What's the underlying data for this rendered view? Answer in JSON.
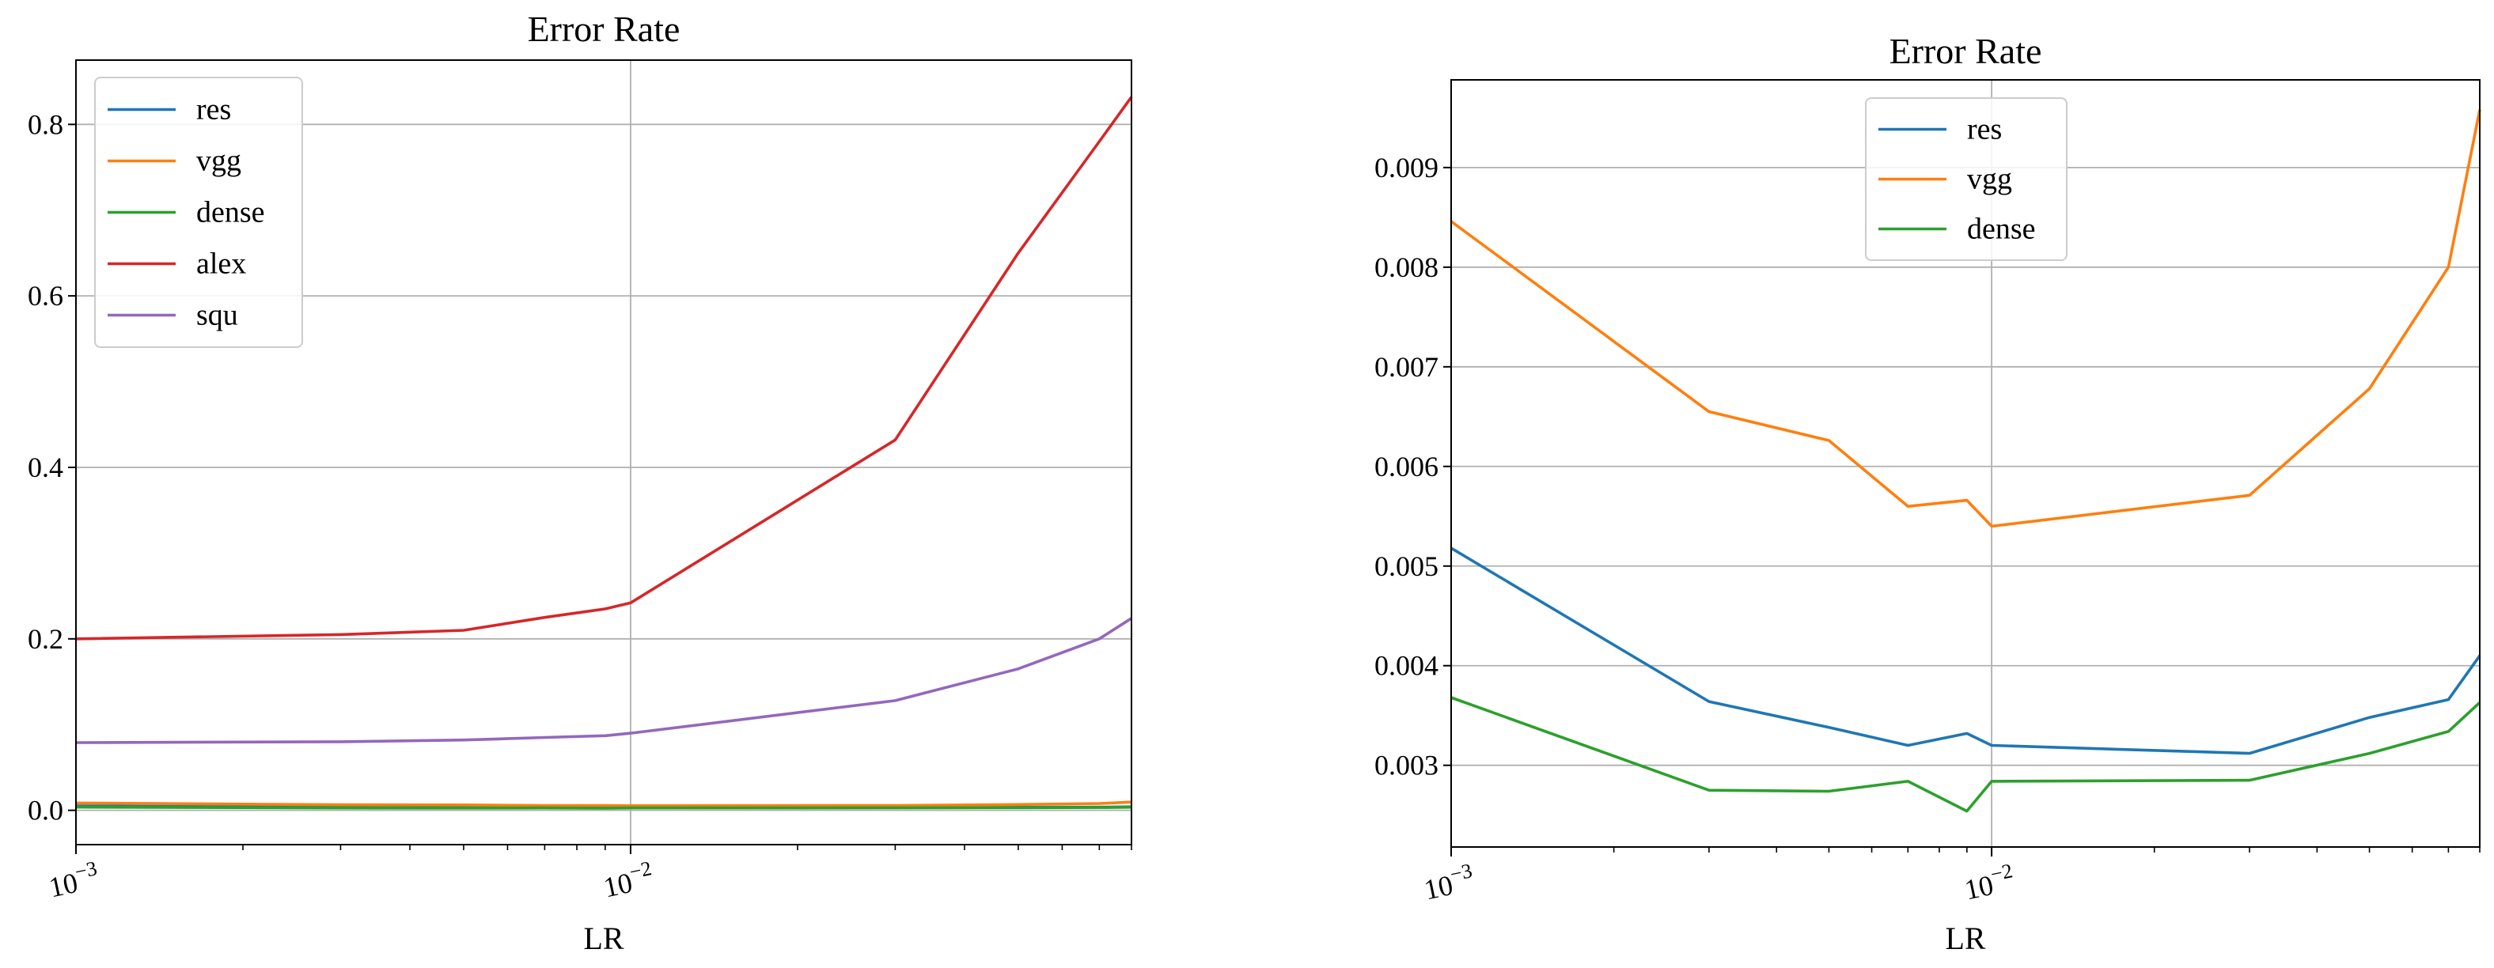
{
  "chart_data": [
    {
      "type": "line",
      "title": "Error Rate",
      "xlabel": "LR",
      "ylabel": "",
      "xscale": "log",
      "xlim": [
        0.001,
        0.08
      ],
      "ylim": [
        -0.04,
        0.875
      ],
      "xticks": [
        {
          "value": 0.001,
          "base": "10",
          "exp": "−3"
        },
        {
          "value": 0.01,
          "base": "10",
          "exp": "−2"
        }
      ],
      "yticks": [
        {
          "value": 0.0,
          "label": "0.0"
        },
        {
          "value": 0.2,
          "label": "0.2"
        },
        {
          "value": 0.4,
          "label": "0.4"
        },
        {
          "value": 0.6,
          "label": "0.6"
        },
        {
          "value": 0.8,
          "label": "0.8"
        }
      ],
      "grid": true,
      "legend_position": "upper-left",
      "series": [
        {
          "name": "res",
          "color": "#1f77b4",
          "x": [
            0.001,
            0.003,
            0.005,
            0.007,
            0.009,
            0.01,
            0.03,
            0.05,
            0.07,
            0.08
          ],
          "y": [
            0.0052,
            0.0036,
            0.0034,
            0.0032,
            0.0033,
            0.0032,
            0.0031,
            0.0035,
            0.0037,
            0.0041
          ]
        },
        {
          "name": "vgg",
          "color": "#ff7f0e",
          "x": [
            0.001,
            0.003,
            0.005,
            0.007,
            0.009,
            0.01,
            0.03,
            0.05,
            0.07,
            0.08
          ],
          "y": [
            0.0085,
            0.0065,
            0.0063,
            0.0056,
            0.0057,
            0.0054,
            0.0057,
            0.0068,
            0.008,
            0.0096
          ]
        },
        {
          "name": "dense",
          "color": "#2ca02c",
          "x": [
            0.001,
            0.003,
            0.005,
            0.007,
            0.009,
            0.01,
            0.03,
            0.05,
            0.07,
            0.08
          ],
          "y": [
            0.0037,
            0.0028,
            0.0027,
            0.0028,
            0.0025,
            0.0028,
            0.0029,
            0.0031,
            0.0033,
            0.0036
          ]
        },
        {
          "name": "alex",
          "color": "#d62728",
          "x": [
            0.001,
            0.003,
            0.005,
            0.007,
            0.009,
            0.01,
            0.03,
            0.05,
            0.07,
            0.08
          ],
          "y": [
            0.2,
            0.205,
            0.21,
            0.225,
            0.235,
            0.242,
            0.432,
            0.65,
            0.78,
            0.832
          ]
        },
        {
          "name": "squ",
          "color": "#9467bd",
          "x": [
            0.001,
            0.003,
            0.005,
            0.007,
            0.009,
            0.01,
            0.03,
            0.05,
            0.07,
            0.08
          ],
          "y": [
            0.079,
            0.08,
            0.082,
            0.085,
            0.087,
            0.09,
            0.128,
            0.165,
            0.2,
            0.224
          ]
        }
      ]
    },
    {
      "type": "line",
      "title": "Error Rate",
      "xlabel": "LR",
      "ylabel": "",
      "xscale": "log",
      "xlim": [
        0.001,
        0.08
      ],
      "ylim": [
        0.00218,
        0.00988
      ],
      "xticks": [
        {
          "value": 0.001,
          "base": "10",
          "exp": "−3"
        },
        {
          "value": 0.01,
          "base": "10",
          "exp": "−2"
        }
      ],
      "yticks": [
        {
          "value": 0.003,
          "label": "0.003"
        },
        {
          "value": 0.004,
          "label": "0.004"
        },
        {
          "value": 0.005,
          "label": "0.005"
        },
        {
          "value": 0.006,
          "label": "0.006"
        },
        {
          "value": 0.007,
          "label": "0.007"
        },
        {
          "value": 0.008,
          "label": "0.008"
        },
        {
          "value": 0.009,
          "label": "0.009"
        }
      ],
      "grid": true,
      "legend_position": "upper-center",
      "series": [
        {
          "name": "res",
          "color": "#1f77b4",
          "x": [
            0.001,
            0.003,
            0.005,
            0.007,
            0.009,
            0.01,
            0.03,
            0.05,
            0.07,
            0.08
          ],
          "y": [
            0.00518,
            0.00364,
            0.00338,
            0.0032,
            0.00332,
            0.0032,
            0.00312,
            0.00348,
            0.00366,
            0.0041
          ]
        },
        {
          "name": "vgg",
          "color": "#ff7f0e",
          "x": [
            0.001,
            0.003,
            0.005,
            0.007,
            0.009,
            0.01,
            0.03,
            0.05,
            0.07,
            0.08
          ],
          "y": [
            0.00846,
            0.00655,
            0.00626,
            0.0056,
            0.00566,
            0.0054,
            0.00571,
            0.00678,
            0.008,
            0.00958
          ]
        },
        {
          "name": "dense",
          "color": "#2ca02c",
          "x": [
            0.001,
            0.003,
            0.005,
            0.007,
            0.009,
            0.01,
            0.03,
            0.05,
            0.07,
            0.08
          ],
          "y": [
            0.00368,
            0.00275,
            0.00274,
            0.00284,
            0.00254,
            0.00284,
            0.00285,
            0.00312,
            0.00334,
            0.00363
          ]
        }
      ]
    }
  ]
}
